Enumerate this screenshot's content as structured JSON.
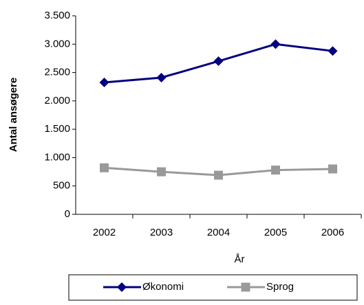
{
  "chart_data": {
    "type": "line",
    "categories": [
      "2002",
      "2003",
      "2004",
      "2005",
      "2006"
    ],
    "series": [
      {
        "name": "Økonomi",
        "color": "#000080",
        "marker": "diamond",
        "values": [
          2325,
          2410,
          2700,
          3000,
          2880
        ]
      },
      {
        "name": "Sprog",
        "color": "#999999",
        "marker": "square",
        "values": [
          820,
          750,
          690,
          780,
          800
        ]
      }
    ],
    "ylim": [
      0,
      3500
    ],
    "yticks": [
      0,
      500,
      {
        "value": 1000,
        "label": "1.000"
      },
      {
        "value": 1500,
        "label": "1.500"
      },
      {
        "value": 2000,
        "label": "2.000"
      },
      {
        "value": 2500,
        "label": "2.500"
      },
      {
        "value": 3000,
        "label": "3.000"
      },
      {
        "value": 3500,
        "label": "3.500"
      }
    ],
    "xlabel": "År",
    "ylabel": "Antal ansøgere",
    "legend": "bottom"
  }
}
